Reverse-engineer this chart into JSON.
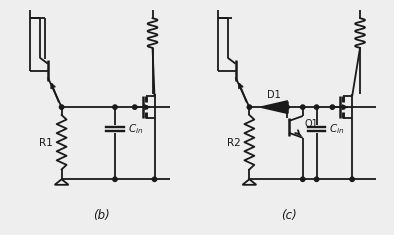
{
  "bg_color": "#eeeeee",
  "line_color": "#1a1a1a",
  "lw": 1.3,
  "label_b": "(b)",
  "label_c": "(c)",
  "label_R1": "R1",
  "label_R2": "R2",
  "label_Cin": "$C_{in}$",
  "label_D1": "D1",
  "label_Q1": "Q1"
}
